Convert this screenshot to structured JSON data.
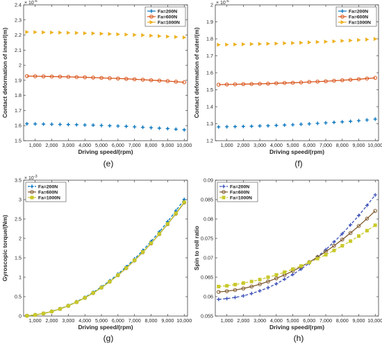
{
  "chart_data": [
    {
      "id": "e",
      "type": "line",
      "caption": "(e)",
      "xlabel": "Driving speed/(rpm)",
      "ylabel": "Contact deformation of inner/(m)",
      "y_exponent": "× 10",
      "y_exponent_power": "-6",
      "xlim": [
        300,
        10200
      ],
      "ylim": [
        1.5,
        2.4
      ],
      "x_ticks": [
        1000,
        2000,
        3000,
        4000,
        5000,
        6000,
        7000,
        8000,
        9000,
        10000
      ],
      "x_tick_labels": [
        "1,000",
        "2,000",
        "3,000",
        "4,000",
        "5,000",
        "6,000",
        "7,000",
        "8,000",
        "9,000",
        "10,000"
      ],
      "y_ticks": [
        1.5,
        1.6,
        1.7,
        1.8,
        1.9,
        2.0,
        2.1,
        2.2,
        2.3,
        2.4
      ],
      "y_tick_labels": [
        "1.5",
        "1.6",
        "1.7",
        "1.8",
        "1.9",
        "2",
        "2.1",
        "2.2",
        "2.3",
        "2.4"
      ],
      "legend_position": "top-right",
      "x": [
        500,
        1000,
        1500,
        2000,
        2500,
        3000,
        3500,
        4000,
        4500,
        5000,
        5500,
        6000,
        6500,
        7000,
        7500,
        8000,
        8500,
        9000,
        9500,
        10000
      ],
      "series": [
        {
          "name": "Fa=200N",
          "color": "#0072BD",
          "marker": "plus",
          "line": "none",
          "values": [
            1.612,
            1.611,
            1.61,
            1.609,
            1.608,
            1.607,
            1.606,
            1.604,
            1.603,
            1.601,
            1.599,
            1.597,
            1.595,
            1.592,
            1.589,
            1.586,
            1.583,
            1.58,
            1.576,
            1.572
          ]
        },
        {
          "name": "Fa=600N",
          "color": "#D95319",
          "marker": "circle",
          "line": "solid",
          "values": [
            1.928,
            1.927,
            1.926,
            1.925,
            1.924,
            1.923,
            1.921,
            1.92,
            1.918,
            1.916,
            1.914,
            1.912,
            1.91,
            1.907,
            1.904,
            1.901,
            1.898,
            1.895,
            1.891,
            1.887
          ]
        },
        {
          "name": "Fa=1000N",
          "color": "#EDB120",
          "marker": "triangle-right",
          "line": "none",
          "values": [
            2.22,
            2.219,
            2.218,
            2.217,
            2.216,
            2.215,
            2.214,
            2.212,
            2.211,
            2.209,
            2.207,
            2.205,
            2.203,
            2.201,
            2.199,
            2.196,
            2.193,
            2.19,
            2.187,
            2.184
          ]
        }
      ]
    },
    {
      "id": "f",
      "type": "line",
      "caption": "(f)",
      "xlabel": "Driving speed/(rpm)",
      "ylabel": "Contact deformation of outer/(m)",
      "y_exponent": "× 10",
      "y_exponent_power": "-6",
      "xlim": [
        300,
        10200
      ],
      "ylim": [
        1.2,
        2.0
      ],
      "x_ticks": [
        1000,
        2000,
        3000,
        4000,
        5000,
        6000,
        7000,
        8000,
        9000,
        10000
      ],
      "x_tick_labels": [
        "1,000",
        "2,000",
        "3,000",
        "4,000",
        "5,000",
        "6,000",
        "7,000",
        "8,000",
        "9,000",
        "10,000"
      ],
      "y_ticks": [
        1.2,
        1.3,
        1.4,
        1.5,
        1.6,
        1.7,
        1.8,
        1.9,
        2.0
      ],
      "y_tick_labels": [
        "1.2",
        "1.3",
        "1.4",
        "1.5",
        "1.6",
        "1.7",
        "1.8",
        "1.9",
        "2"
      ],
      "legend_position": "top-right",
      "x": [
        500,
        1000,
        1500,
        2000,
        2500,
        3000,
        3500,
        4000,
        4500,
        5000,
        5500,
        6000,
        6500,
        7000,
        7500,
        8000,
        8500,
        9000,
        9500,
        10000
      ],
      "series": [
        {
          "name": "Fa=200N",
          "color": "#0072BD",
          "marker": "plus",
          "line": "none",
          "values": [
            1.281,
            1.282,
            1.283,
            1.284,
            1.285,
            1.287,
            1.288,
            1.29,
            1.292,
            1.294,
            1.297,
            1.299,
            1.302,
            1.305,
            1.308,
            1.311,
            1.314,
            1.318,
            1.322,
            1.327
          ]
        },
        {
          "name": "Fa=600N",
          "color": "#D95319",
          "marker": "circle",
          "line": "solid",
          "values": [
            1.53,
            1.531,
            1.532,
            1.533,
            1.534,
            1.535,
            1.536,
            1.538,
            1.54,
            1.541,
            1.543,
            1.546,
            1.548,
            1.55,
            1.553,
            1.556,
            1.559,
            1.562,
            1.566,
            1.57
          ]
        },
        {
          "name": "Fa=1000N",
          "color": "#EDB120",
          "marker": "triangle-right",
          "line": "none",
          "values": [
            1.765,
            1.766,
            1.767,
            1.768,
            1.769,
            1.77,
            1.771,
            1.772,
            1.774,
            1.775,
            1.777,
            1.779,
            1.781,
            1.783,
            1.785,
            1.788,
            1.79,
            1.793,
            1.796,
            1.799
          ]
        }
      ]
    },
    {
      "id": "g",
      "type": "line",
      "caption": "(g)",
      "xlabel": "Driving speed/(rpm)",
      "ylabel": "Gyroscopic torque/(Nm)",
      "y_exponent": "× 10",
      "y_exponent_power": "-3",
      "xlim": [
        300,
        10200
      ],
      "ylim": [
        0,
        3.5
      ],
      "x_ticks": [
        1000,
        2000,
        3000,
        4000,
        5000,
        6000,
        7000,
        8000,
        9000,
        10000
      ],
      "x_tick_labels": [
        "1,000",
        "2,000",
        "3,000",
        "4,000",
        "5,000",
        "6,000",
        "7,000",
        "8,000",
        "9,000",
        "10,000"
      ],
      "y_ticks": [
        0,
        0.5,
        1.0,
        1.5,
        2.0,
        2.5,
        3.0,
        3.5
      ],
      "y_tick_labels": [
        "0",
        "0.5",
        "1",
        "1.5",
        "2",
        "2.5",
        "3",
        "3.5"
      ],
      "legend_position": "top-left",
      "x": [
        500,
        1000,
        1500,
        2000,
        2500,
        3000,
        3500,
        4000,
        4500,
        5000,
        5500,
        6000,
        6500,
        7000,
        7500,
        8000,
        8500,
        9000,
        9500,
        10000
      ],
      "series": [
        {
          "name": "Fa=200N",
          "color": "#0072BD",
          "marker": "plus",
          "line": "dashed",
          "values": [
            0.008,
            0.03,
            0.068,
            0.12,
            0.188,
            0.271,
            0.368,
            0.481,
            0.609,
            0.751,
            0.909,
            1.082,
            1.27,
            1.472,
            1.69,
            1.923,
            2.171,
            2.434,
            2.712,
            3.005
          ]
        },
        {
          "name": "Fa=600N",
          "color": "#7F5A2E",
          "marker": "circle",
          "line": "solid",
          "values": [
            0.007,
            0.029,
            0.066,
            0.117,
            0.183,
            0.263,
            0.358,
            0.468,
            0.592,
            0.731,
            0.884,
            1.052,
            1.235,
            1.432,
            1.644,
            1.871,
            2.112,
            2.368,
            2.638,
            2.923
          ]
        },
        {
          "name": "Fa=1000N",
          "color": "#C9C92A",
          "marker": "square",
          "line": "solid",
          "values": [
            0.007,
            0.029,
            0.066,
            0.117,
            0.183,
            0.264,
            0.359,
            0.469,
            0.594,
            0.733,
            0.887,
            1.056,
            1.239,
            1.437,
            1.65,
            1.877,
            2.119,
            2.376,
            2.647,
            2.933
          ]
        }
      ]
    },
    {
      "id": "h",
      "type": "line",
      "caption": "(h)",
      "xlabel": "Driving speed/(rpm)",
      "ylabel": "Spin to roll ratio",
      "y_exponent": "",
      "y_exponent_power": "",
      "xlim": [
        300,
        10200
      ],
      "ylim": [
        0.055,
        0.09
      ],
      "x_ticks": [
        1000,
        2000,
        3000,
        4000,
        5000,
        6000,
        7000,
        8000,
        9000,
        10000
      ],
      "x_tick_labels": [
        "1,000",
        "2,000",
        "3,000",
        "4,000",
        "5,000",
        "6,000",
        "7,000",
        "8,000",
        "9,000",
        "10,000"
      ],
      "y_ticks": [
        0.055,
        0.06,
        0.065,
        0.07,
        0.075,
        0.08,
        0.085,
        0.09
      ],
      "y_tick_labels": [
        "0.055",
        "0.06",
        "0.065",
        "0.07",
        "0.075",
        "0.08",
        "0.085",
        "0.09"
      ],
      "legend_position": "top-left",
      "x": [
        500,
        1000,
        1500,
        2000,
        2500,
        3000,
        3500,
        4000,
        4500,
        5000,
        5500,
        6000,
        6500,
        7000,
        7500,
        8000,
        8500,
        9000,
        9500,
        10000
      ],
      "series": [
        {
          "name": "Fa=200N",
          "color": "#3A4FB8",
          "marker": "plus",
          "line": "dashed",
          "values": [
            0.0593,
            0.0595,
            0.0598,
            0.0602,
            0.0608,
            0.0615,
            0.0623,
            0.0633,
            0.0645,
            0.0657,
            0.0671,
            0.0686,
            0.0703,
            0.0721,
            0.0741,
            0.0762,
            0.0785,
            0.0809,
            0.0835,
            0.0862
          ]
        },
        {
          "name": "Fa=600N",
          "color": "#7F5A2E",
          "marker": "circle",
          "line": "solid",
          "values": [
            0.0612,
            0.0614,
            0.0617,
            0.0621,
            0.0626,
            0.0632,
            0.0639,
            0.0647,
            0.0656,
            0.0666,
            0.0677,
            0.0689,
            0.0702,
            0.0716,
            0.0731,
            0.0747,
            0.0764,
            0.0782,
            0.0801,
            0.0821
          ]
        },
        {
          "name": "Fa=1000N",
          "color": "#C9C92A",
          "marker": "square",
          "line": "dashed",
          "values": [
            0.0626,
            0.0628,
            0.0631,
            0.0635,
            0.0639,
            0.0644,
            0.065,
            0.0656,
            0.0663,
            0.0671,
            0.0679,
            0.0688,
            0.0698,
            0.0708,
            0.0719,
            0.0731,
            0.0743,
            0.0756,
            0.077,
            0.0784
          ]
        }
      ]
    }
  ]
}
